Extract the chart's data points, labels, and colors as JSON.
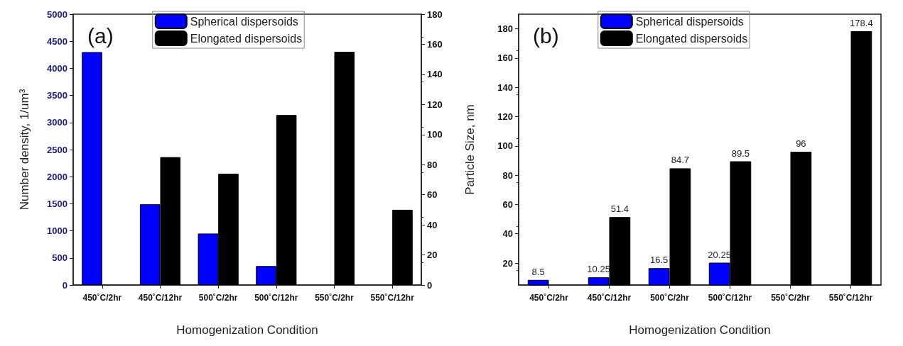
{
  "chart_data": [
    {
      "type": "bar",
      "title": "(a)",
      "xlabel": "Homogenization Condition",
      "ylabel": "Number density, 1/um³",
      "categories": [
        "450˚C/2hr",
        "450˚C/12hr",
        "500˚C/2hr",
        "500˚C/12hr",
        "550˚C/2hr",
        "550˚C/12hr"
      ],
      "series": [
        {
          "name": "Spherical dispersoids",
          "color": "#0000ff",
          "values": [
            4300,
            1490,
            950,
            350,
            null,
            null
          ]
        },
        {
          "name": "Elongated dispersoids",
          "color": "#000000",
          "axis": "y2",
          "values": [
            null,
            85,
            74,
            113,
            155,
            50
          ]
        }
      ],
      "ylim": [
        0,
        5000
      ],
      "yticks": [
        0,
        500,
        1000,
        1500,
        2000,
        2500,
        3000,
        3500,
        4000,
        4500,
        5000
      ],
      "y2lim": [
        0,
        180
      ],
      "y2ticks": [
        0,
        20,
        40,
        60,
        80,
        100,
        120,
        140,
        160,
        180
      ],
      "legend": "top",
      "grid": false
    },
    {
      "type": "bar",
      "title": "(b)",
      "xlabel": "Homogenization Condition",
      "ylabel": "Particle Size, nm",
      "categories": [
        "450˚C/2hr",
        "450˚C/12hr",
        "500˚C/2hr",
        "500˚C/12hr",
        "550˚C/2hr",
        "550˚C/12hr"
      ],
      "series": [
        {
          "name": "Spherical dispersoids",
          "color": "#0000ff",
          "values": [
            8.5,
            10.25,
            16.5,
            20.25,
            null,
            null
          ]
        },
        {
          "name": "Elongated dispersoids",
          "color": "#000000",
          "values": [
            null,
            51.4,
            84.7,
            89.5,
            96,
            178.4
          ]
        }
      ],
      "ylim": [
        5,
        190
      ],
      "yticks": [
        20,
        40,
        60,
        80,
        100,
        120,
        140,
        160,
        180
      ],
      "legend": "top",
      "grid": false,
      "data_labels": true
    }
  ]
}
